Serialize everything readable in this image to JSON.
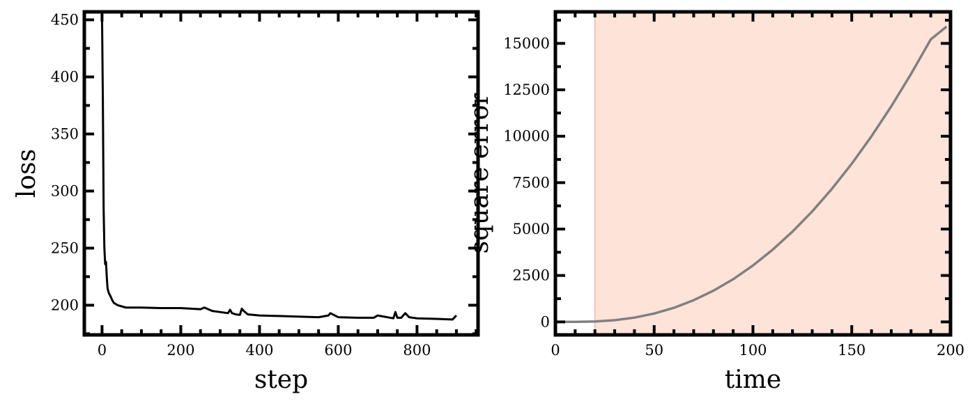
{
  "chart_data": [
    {
      "type": "line",
      "title": "",
      "xlabel": "step",
      "ylabel": "loss",
      "xlim": [
        -45,
        955
      ],
      "ylim": [
        174,
        457
      ],
      "xticks": [
        0,
        200,
        400,
        600,
        800
      ],
      "xtick_labels": [
        "0",
        "200",
        "400",
        "600",
        "800"
      ],
      "yticks": [
        200,
        250,
        300,
        350,
        400,
        450
      ],
      "ytick_labels": [
        "200",
        "250",
        "300",
        "350",
        "400",
        "450"
      ],
      "grid": false,
      "colors": {
        "line": "#000000"
      },
      "series": [
        {
          "x": [
            0,
            2,
            4,
            6,
            8,
            10,
            12,
            14,
            16,
            18,
            20,
            25,
            30,
            40,
            50,
            60,
            80,
            100,
            150,
            200,
            250,
            260,
            280,
            300,
            320,
            325,
            330,
            340,
            350,
            355,
            360,
            370,
            400,
            450,
            500,
            550,
            575,
            580,
            600,
            650,
            690,
            700,
            740,
            745,
            750,
            760,
            770,
            780,
            800,
            850,
            890,
            900
          ],
          "y": [
            455,
            380,
            285,
            250,
            236,
            238,
            225,
            215,
            212,
            210,
            209,
            205,
            202,
            200,
            199,
            198,
            198,
            198,
            197.5,
            197.5,
            196.5,
            198,
            195,
            194,
            193,
            196,
            193,
            192,
            191.5,
            197,
            195,
            192,
            191,
            190.5,
            190,
            189.5,
            191,
            193,
            189.5,
            189,
            189,
            191,
            188.5,
            194,
            189,
            189,
            193,
            189.5,
            188.5,
            188,
            187.5,
            191
          ]
        }
      ]
    },
    {
      "type": "line",
      "title": "",
      "xlabel": "time",
      "ylabel": "square error",
      "xlim": [
        0,
        200
      ],
      "ylim": [
        -700,
        16700
      ],
      "xticks": [
        0,
        50,
        100,
        150,
        200
      ],
      "xtick_labels": [
        "0",
        "50",
        "100",
        "150",
        "200"
      ],
      "yticks": [
        0,
        2500,
        5000,
        7500,
        10000,
        12500,
        15000
      ],
      "ytick_labels": [
        "0",
        "2500",
        "5000",
        "7500",
        "10000",
        "12500",
        "15000"
      ],
      "grid": false,
      "shaded_region": {
        "x_start": 20,
        "x_end": 200,
        "color": "#fde3d8"
      },
      "colors": {
        "line": "#808080",
        "shade": "#fde3d8"
      },
      "series": [
        {
          "x": [
            0,
            10,
            20,
            30,
            40,
            50,
            60,
            70,
            80,
            90,
            100,
            110,
            120,
            130,
            140,
            150,
            160,
            170,
            180,
            190,
            198
          ],
          "y": [
            0,
            0,
            20,
            90,
            230,
            450,
            760,
            1170,
            1680,
            2300,
            3040,
            3890,
            4860,
            5950,
            7170,
            8520,
            10000,
            11610,
            13350,
            15220,
            15900
          ]
        }
      ]
    }
  ]
}
